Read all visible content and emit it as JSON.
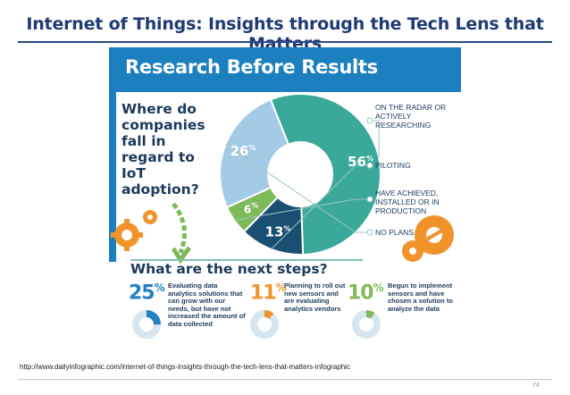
{
  "slide": {
    "title": "Internet of Things: Insights through the Tech Lens that Matters",
    "source_url": "http://www.dailyinfographic.com/internet-of-things-insights-through-the-tech-lens-that-matters-infographic",
    "page_number": "74"
  },
  "infographic": {
    "banner_title": "Research Before Results",
    "question": "Where do companies fall in regard to IoT adoption?",
    "pie": {
      "segments": [
        {
          "value": "56",
          "unit": "%",
          "label": "ON THE RADAR OR ACTIVELY RESEARCHING",
          "color": "#3aa99a"
        },
        {
          "value": "13",
          "unit": "%",
          "label": "PILOTING",
          "color": "#1b4f72"
        },
        {
          "value": "6",
          "unit": "%",
          "label": "HAVE ACHIEVED, INSTALLED OR IN PRODUCTION",
          "color": "#7fba5a"
        },
        {
          "value": "26",
          "unit": "%",
          "label": "NO PLANS",
          "color": "#a3cbe6"
        }
      ]
    },
    "next_steps": {
      "title": "What are the next steps?",
      "items": [
        {
          "value": "25",
          "unit": "%",
          "text": "Evaluating data analytics solutions that can grow with our needs, but have not increased the amount of data collected",
          "color": "#2380c3"
        },
        {
          "value": "11",
          "unit": "%",
          "text": "Planning to roll out new sensors and are evaluating analytics vendors",
          "color": "#f0932b"
        },
        {
          "value": "10",
          "unit": "%",
          "text": "Begun to implement sensors and have chosen a solution to analyze the data",
          "color": "#7fba5a"
        }
      ]
    }
  },
  "colors": {
    "title": "#1f3b73",
    "banner": "#1c7fbf",
    "dark_text": "#1d3a5c",
    "accent_orange": "#f0932b"
  }
}
